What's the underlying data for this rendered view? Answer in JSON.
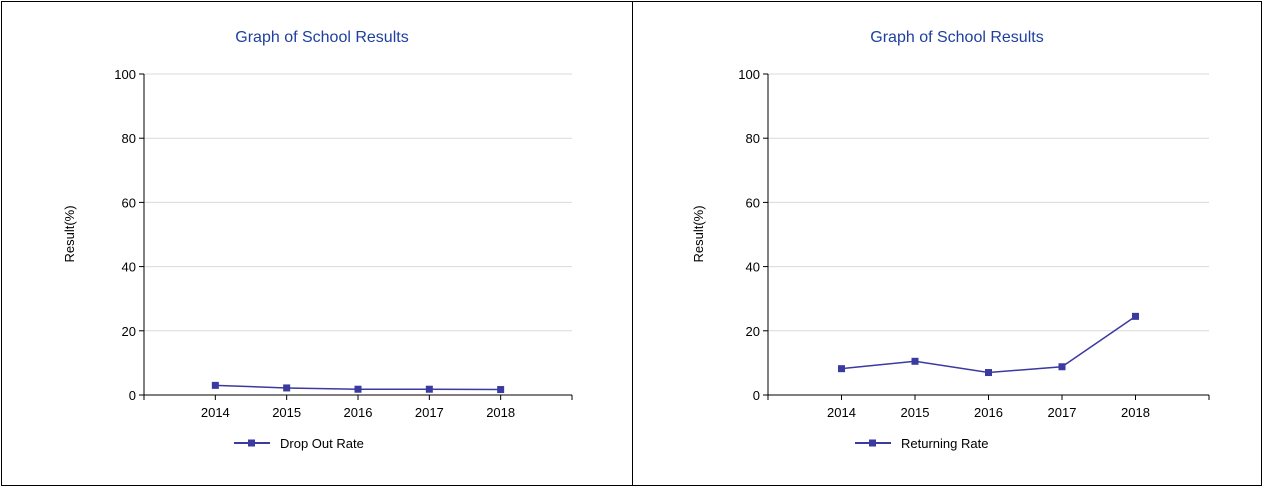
{
  "chart_data": [
    {
      "type": "line",
      "title": "Graph of School Results",
      "xlabel": "",
      "ylabel": "Result(%)",
      "categories": [
        "2014",
        "2015",
        "2016",
        "2017",
        "2018"
      ],
      "series": [
        {
          "name": "Drop Out Rate",
          "values": [
            3.0,
            2.2,
            1.8,
            1.8,
            1.7
          ]
        }
      ],
      "ylim": [
        0,
        100
      ],
      "yticks": [
        0,
        20,
        40,
        60,
        80,
        100
      ],
      "grid": true,
      "legend": "bottom",
      "color": "#3a3aa0"
    },
    {
      "type": "line",
      "title": "Graph of School Results",
      "xlabel": "",
      "ylabel": "Result(%)",
      "categories": [
        "2014",
        "2015",
        "2016",
        "2017",
        "2018"
      ],
      "series": [
        {
          "name": "Returning Rate",
          "values": [
            8.2,
            10.5,
            7.0,
            8.8,
            24.5
          ]
        }
      ],
      "ylim": [
        0,
        100
      ],
      "yticks": [
        0,
        20,
        40,
        60,
        80,
        100
      ],
      "grid": true,
      "legend": "bottom",
      "color": "#3a3aa0"
    }
  ]
}
